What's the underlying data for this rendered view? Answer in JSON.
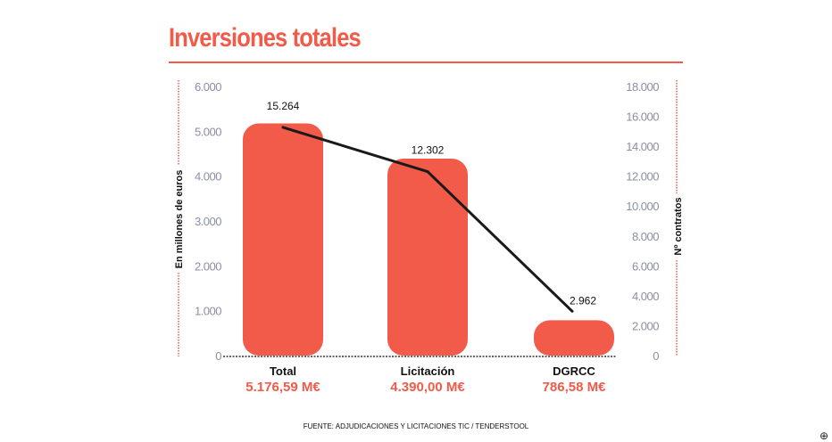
{
  "chart_data": {
    "type": "bar",
    "title": "Inversiones totales",
    "categories": [
      "Total",
      "Licitación",
      "DGRCC"
    ],
    "amount_labels": [
      "5.176,59 M€",
      "4.390,00 M€",
      "786,58 M€"
    ],
    "series": [
      {
        "name": "En millones de euros",
        "type": "bar",
        "axis": "left",
        "values": [
          5176.59,
          4390.0,
          786.58
        ]
      },
      {
        "name": "Nº contratos",
        "type": "line",
        "axis": "right",
        "values": [
          15264,
          12302,
          2962
        ],
        "labels": [
          "15.264",
          "12.302",
          "2.962"
        ]
      }
    ],
    "ylabel": "En millones de euros",
    "ylabel_right": "Nº contratos",
    "ylim": [
      0,
      6000
    ],
    "ylim_right": [
      0,
      18000
    ],
    "yticks": [
      "0",
      "1.000",
      "2.000",
      "3.000",
      "4.000",
      "5.000",
      "6.000"
    ],
    "yticks_right": [
      "0",
      "2.000",
      "4.000",
      "6.000",
      "8.000",
      "10.000",
      "12.000",
      "14.000",
      "16.000",
      "18.000"
    ],
    "grid": false,
    "colors": {
      "bar": "#f25a49",
      "line": "#1a1a1a",
      "tick": "#8a8fa3"
    }
  },
  "source": "FUENTE: ADJUDICACIONES Y LICITACIONES TIC / TENDERSTOOL"
}
